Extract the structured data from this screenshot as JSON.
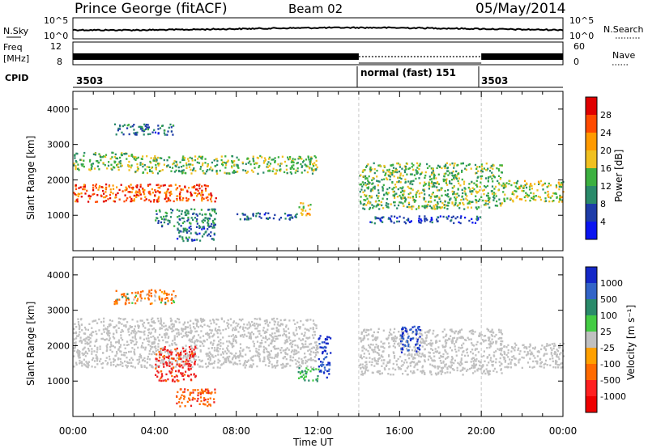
{
  "header": {
    "station": "Prince George (fitACF)",
    "beam": "Beam 02",
    "date": "05/May/2014"
  },
  "top_panels": {
    "nsky_label": "N.Sky",
    "noise_ticks": [
      "10^5",
      "10^0"
    ],
    "nsearch_label": "N.Search",
    "freq_label_1": "Freq",
    "freq_label_2": "[MHz]",
    "freq_ticks": [
      "12",
      "8"
    ],
    "nave_ticks": [
      "60",
      "0"
    ],
    "nave_label": "Nave",
    "cpid_label": "CPID",
    "cpid_segments": [
      {
        "label": "3503"
      },
      {
        "label": "normal (fast) 151"
      },
      {
        "label": "3503"
      }
    ]
  },
  "panel_colors": {
    "noise_line": "#000000",
    "grid_dash": "#c8c8c8"
  },
  "power_colorbar": {
    "label": "Power [dB]",
    "ticks": [
      "28",
      "24",
      "20",
      "16",
      "12",
      "8",
      "4"
    ],
    "colors": [
      "#e00000",
      "#ff4a00",
      "#ff9a00",
      "#f0c020",
      "#3cb040",
      "#2a8a6a",
      "#1e3ca8",
      "#0a14f0"
    ]
  },
  "velocity_colorbar": {
    "label": "Velocity [m s⁻¹]",
    "ticks": [
      "1000",
      "500",
      "100",
      "25",
      "-25",
      "-100",
      "-500",
      "-1000"
    ],
    "colors": [
      "#1428c8",
      "#3264c8",
      "#2a8a6a",
      "#44cc44",
      "#c0c0c0",
      "#ffa000",
      "#ff6a00",
      "#ff2020",
      "#ee0000"
    ]
  },
  "chart_data": [
    {
      "type": "heatmap",
      "name": "power",
      "ylabel": "Slant Range [km]",
      "ylim": [
        0,
        4500
      ],
      "yticks": [
        "4000",
        "3000",
        "2000",
        "1000"
      ],
      "xlim_hours": [
        0,
        24
      ],
      "blobs": [
        {
          "x": [
            0,
            7
          ],
          "y": [
            1400,
            1900
          ],
          "value": 26
        },
        {
          "x": [
            0,
            3
          ],
          "y": [
            2300,
            2800
          ],
          "value": 14
        },
        {
          "x": [
            3,
            12
          ],
          "y": [
            2200,
            2700
          ],
          "value": 14
        },
        {
          "x": [
            4,
            7
          ],
          "y": [
            700,
            1200
          ],
          "value": 10
        },
        {
          "x": [
            5,
            7
          ],
          "y": [
            300,
            700
          ],
          "value": 8
        },
        {
          "x": [
            8,
            11
          ],
          "y": [
            900,
            1100
          ],
          "value": 8
        },
        {
          "x": [
            11,
            11.6
          ],
          "y": [
            1000,
            1400
          ],
          "value": 20
        },
        {
          "x": [
            14,
            21
          ],
          "y": [
            1200,
            2500
          ],
          "value": 14
        },
        {
          "x": [
            14.5,
            20
          ],
          "y": [
            800,
            1000
          ],
          "value": 6
        },
        {
          "x": [
            21,
            24
          ],
          "y": [
            1400,
            2000
          ],
          "value": 16
        },
        {
          "x": [
            2,
            5
          ],
          "y": [
            3300,
            3600
          ],
          "value": 8
        }
      ]
    },
    {
      "type": "heatmap",
      "name": "velocity",
      "ylabel": "Slant Range [km]",
      "ylim": [
        0,
        4500
      ],
      "yticks": [
        "4000",
        "3000",
        "2000",
        "1000"
      ],
      "xlabel": "Time UT",
      "xticks": [
        "00:00",
        "04:00",
        "08:00",
        "12:00",
        "16:00",
        "20:00",
        "00:00"
      ],
      "xlim_hours": [
        0,
        24
      ],
      "blobs": [
        {
          "x": [
            0,
            12
          ],
          "y": [
            1400,
            2800
          ],
          "value": 0
        },
        {
          "x": [
            2,
            5
          ],
          "y": [
            3200,
            3600
          ],
          "value": -200
        },
        {
          "x": [
            4,
            6
          ],
          "y": [
            1000,
            2000
          ],
          "value": -700
        },
        {
          "x": [
            5,
            7
          ],
          "y": [
            300,
            800
          ],
          "value": -400
        },
        {
          "x": [
            11,
            12
          ],
          "y": [
            1000,
            1400
          ],
          "value": 60
        },
        {
          "x": [
            12,
            12.6
          ],
          "y": [
            1100,
            2300
          ],
          "value": 800
        },
        {
          "x": [
            14,
            21
          ],
          "y": [
            1200,
            2500
          ],
          "value": 0
        },
        {
          "x": [
            16,
            17
          ],
          "y": [
            1800,
            2600
          ],
          "value": 700
        },
        {
          "x": [
            21,
            24
          ],
          "y": [
            1400,
            2100
          ],
          "value": 0
        }
      ]
    }
  ]
}
